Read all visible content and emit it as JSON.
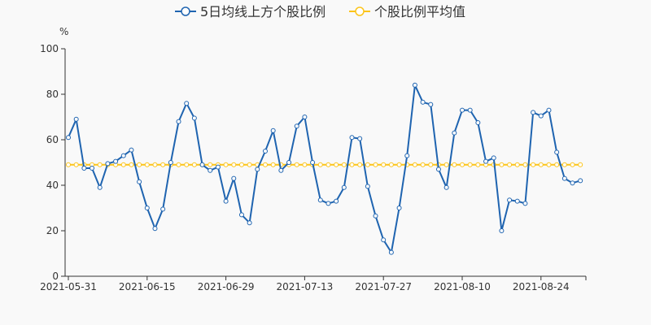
{
  "chart_data": {
    "type": "line",
    "title": "",
    "ylabel": "%",
    "xlabel": "",
    "ylim": [
      0,
      100
    ],
    "yticks": [
      0,
      20,
      40,
      60,
      80,
      100
    ],
    "grid": false,
    "legend_placement": "top-center",
    "xtick_labels": [
      "2021-05-31",
      "2021-06-15",
      "2021-06-29",
      "2021-07-13",
      "2021-07-27",
      "2021-08-10",
      "2021-08-24"
    ],
    "x": [
      "2021-05-31",
      "2021-06-01",
      "2021-06-02",
      "2021-06-03",
      "2021-06-04",
      "2021-06-07",
      "2021-06-08",
      "2021-06-09",
      "2021-06-10",
      "2021-06-11",
      "2021-06-15",
      "2021-06-16",
      "2021-06-17",
      "2021-06-18",
      "2021-06-21",
      "2021-06-22",
      "2021-06-23",
      "2021-06-24",
      "2021-06-25",
      "2021-06-28",
      "2021-06-29",
      "2021-06-30",
      "2021-07-01",
      "2021-07-02",
      "2021-07-05",
      "2021-07-06",
      "2021-07-07",
      "2021-07-08",
      "2021-07-09",
      "2021-07-12",
      "2021-07-13",
      "2021-07-14",
      "2021-07-15",
      "2021-07-16",
      "2021-07-19",
      "2021-07-20",
      "2021-07-21",
      "2021-07-22",
      "2021-07-23",
      "2021-07-26",
      "2021-07-27",
      "2021-07-28",
      "2021-07-29",
      "2021-07-30",
      "2021-08-02",
      "2021-08-03",
      "2021-08-04",
      "2021-08-05",
      "2021-08-06",
      "2021-08-09",
      "2021-08-10",
      "2021-08-11",
      "2021-08-12",
      "2021-08-13",
      "2021-08-16",
      "2021-08-17",
      "2021-08-18",
      "2021-08-19",
      "2021-08-20",
      "2021-08-23",
      "2021-08-24",
      "2021-08-25",
      "2021-08-26",
      "2021-08-27",
      "2021-08-30",
      "2021-08-31"
    ],
    "series": [
      {
        "name": "5日均线上方个股比例",
        "color": "#1f64b0",
        "values": [
          61,
          69,
          47.5,
          47.5,
          39,
          49.5,
          50.5,
          53,
          55.5,
          41.5,
          30,
          21,
          29.5,
          50,
          68,
          76,
          69.5,
          49,
          46.5,
          48,
          33,
          43,
          27,
          23.5,
          47,
          55,
          64,
          46.5,
          50,
          66,
          70,
          50,
          33.5,
          32,
          33,
          39,
          61,
          60.5,
          39.5,
          26.5,
          16,
          10.5,
          30,
          53,
          84,
          76.5,
          75.5,
          47,
          39,
          63,
          73,
          73,
          67.5,
          50.5,
          52,
          20,
          33.5,
          33,
          32,
          72,
          70.5,
          73,
          54.5,
          43,
          41,
          42
        ]
      },
      {
        "name": "个股比例平均值",
        "color": "#fcc419",
        "constant": 49
      }
    ]
  }
}
